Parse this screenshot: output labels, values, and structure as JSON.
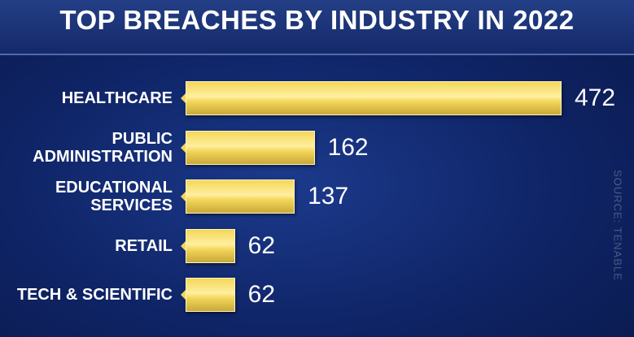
{
  "chart_data": {
    "type": "bar",
    "orientation": "horizontal",
    "title": "TOP BREACHES BY INDUSTRY IN 2022",
    "categories": [
      "HEALTHCARE",
      "PUBLIC ADMINISTRATION",
      "EDUCATIONAL SERVICES",
      "RETAIL",
      "TECH & SCIENTIFIC"
    ],
    "values": [
      472,
      162,
      137,
      62,
      62
    ],
    "color": "#f3d65a",
    "source": "SOURCE: TENABLE"
  }
}
